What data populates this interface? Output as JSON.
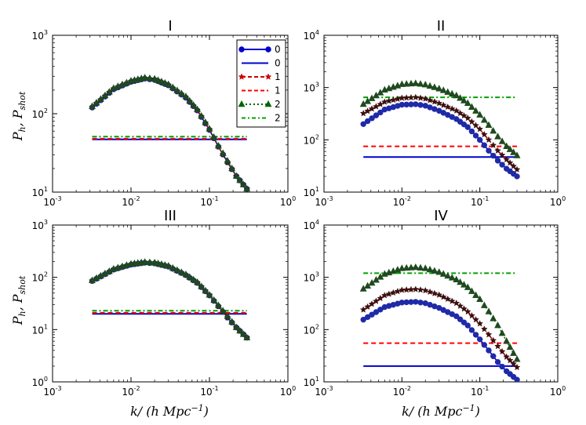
{
  "figure": {
    "xlabel_main": "k/ (h Mpc",
    "xlabel_exp": "−1",
    "xlabel_close": ")",
    "ylabel_p": "P",
    "ylabel_h": "h",
    "ylabel_comma": ",  P",
    "ylabel_shot": "shot"
  },
  "legend": [
    {
      "label": "0",
      "color": "#0000cc",
      "style": "line-marker",
      "marker": "circle"
    },
    {
      "label": "0",
      "color": "#0000cc",
      "style": "solid",
      "marker": "none"
    },
    {
      "label": "1",
      "color": "#cc0000",
      "style": "dashed-marker",
      "marker": "star"
    },
    {
      "label": "1",
      "color": "#ff0000",
      "style": "dashed",
      "marker": "none"
    },
    {
      "label": "2",
      "color": "#006400",
      "style": "dotted-marker",
      "marker": "triangle"
    },
    {
      "label": "2",
      "color": "#00a000",
      "style": "dashdot",
      "marker": "none"
    }
  ],
  "chart_data": [
    {
      "type": "line",
      "title": "I",
      "xscale": "log",
      "yscale": "log",
      "xlim": [
        0.001,
        1
      ],
      "ylim": [
        10,
        1000
      ],
      "xticks": [
        {
          "v": 0.001,
          "b": "10",
          "e": "-3"
        },
        {
          "v": 0.01,
          "b": "10",
          "e": "-2"
        },
        {
          "v": 0.1,
          "b": "10",
          "e": "-1"
        },
        {
          "v": 1,
          "b": "10",
          "e": "0"
        }
      ],
      "yticks": [
        {
          "v": 10,
          "b": "10",
          "e": "1"
        },
        {
          "v": 100,
          "b": "10",
          "e": "2"
        },
        {
          "v": 1000,
          "b": "10",
          "e": "3"
        }
      ],
      "x": [
        0.0032,
        0.006,
        0.01,
        0.015,
        0.02,
        0.03,
        0.05,
        0.07,
        0.1,
        0.13,
        0.17,
        0.22,
        0.3
      ],
      "series": [
        {
          "name": "0",
          "values": [
            120,
            205,
            255,
            280,
            270,
            230,
            160,
            110,
            62,
            38,
            24,
            16,
            11
          ]
        },
        {
          "name": "1",
          "values": [
            122,
            208,
            258,
            283,
            273,
            232,
            162,
            111,
            63,
            38,
            24,
            16,
            11
          ]
        },
        {
          "name": "2",
          "values": [
            124,
            211,
            262,
            287,
            277,
            236,
            165,
            113,
            64,
            39,
            25,
            16,
            11
          ]
        }
      ],
      "shot": [
        {
          "name": "0",
          "value": 47
        },
        {
          "name": "1",
          "value": 48
        },
        {
          "name": "2",
          "value": 51
        }
      ]
    },
    {
      "type": "line",
      "title": "II",
      "xscale": "log",
      "yscale": "log",
      "xlim": [
        0.001,
        1
      ],
      "ylim": [
        10,
        10000
      ],
      "xticks": [
        {
          "v": 0.001,
          "b": "10",
          "e": "-3"
        },
        {
          "v": 0.01,
          "b": "10",
          "e": "-2"
        },
        {
          "v": 0.1,
          "b": "10",
          "e": "-1"
        },
        {
          "v": 1,
          "b": "10",
          "e": "0"
        }
      ],
      "yticks": [
        {
          "v": 10,
          "b": "10",
          "e": "1"
        },
        {
          "v": 100,
          "b": "10",
          "e": "2"
        },
        {
          "v": 1000,
          "b": "10",
          "e": "3"
        },
        {
          "v": 10000,
          "b": "10",
          "e": "4"
        }
      ],
      "x": [
        0.0032,
        0.006,
        0.01,
        0.015,
        0.02,
        0.03,
        0.05,
        0.07,
        0.1,
        0.13,
        0.17,
        0.22,
        0.3
      ],
      "series": [
        {
          "name": "0",
          "values": [
            200,
            380,
            470,
            480,
            450,
            360,
            250,
            175,
            100,
            62,
            40,
            28,
            20
          ]
        },
        {
          "name": "1",
          "values": [
            320,
            530,
            630,
            650,
            610,
            500,
            360,
            260,
            160,
            100,
            62,
            42,
            27
          ]
        },
        {
          "name": "2",
          "values": [
            480,
            900,
            1150,
            1200,
            1130,
            950,
            700,
            500,
            300,
            190,
            115,
            75,
            50
          ]
        }
      ],
      "shot": [
        {
          "name": "0",
          "value": 47
        },
        {
          "name": "1",
          "value": 75
        },
        {
          "name": "2",
          "value": 650
        }
      ]
    },
    {
      "type": "line",
      "title": "III",
      "xscale": "log",
      "yscale": "log",
      "xlim": [
        0.001,
        1
      ],
      "ylim": [
        1,
        1000
      ],
      "xticks": [
        {
          "v": 0.001,
          "b": "10",
          "e": "-3"
        },
        {
          "v": 0.01,
          "b": "10",
          "e": "-2"
        },
        {
          "v": 0.1,
          "b": "10",
          "e": "-1"
        },
        {
          "v": 1,
          "b": "10",
          "e": "0"
        }
      ],
      "yticks": [
        {
          "v": 1,
          "b": "10",
          "e": "0"
        },
        {
          "v": 10,
          "b": "10",
          "e": "1"
        },
        {
          "v": 100,
          "b": "10",
          "e": "2"
        },
        {
          "v": 1000,
          "b": "10",
          "e": "3"
        }
      ],
      "x": [
        0.0032,
        0.006,
        0.01,
        0.015,
        0.02,
        0.03,
        0.05,
        0.07,
        0.1,
        0.13,
        0.17,
        0.22,
        0.3
      ],
      "series": [
        {
          "name": "0",
          "values": [
            85,
            140,
            175,
            190,
            185,
            160,
            110,
            78,
            45,
            28,
            17,
            11,
            7
          ]
        },
        {
          "name": "1",
          "values": [
            86,
            142,
            177,
            192,
            187,
            162,
            111,
            79,
            46,
            28,
            17,
            11,
            7
          ]
        },
        {
          "name": "2",
          "values": [
            87,
            144,
            180,
            195,
            190,
            165,
            113,
            80,
            46,
            29,
            18,
            11,
            7
          ]
        }
      ],
      "shot": [
        {
          "name": "0",
          "value": 20
        },
        {
          "name": "1",
          "value": 21
        },
        {
          "name": "2",
          "value": 23
        }
      ]
    },
    {
      "type": "line",
      "title": "IV",
      "xscale": "log",
      "yscale": "log",
      "xlim": [
        0.001,
        1
      ],
      "ylim": [
        10,
        10000
      ],
      "xticks": [
        {
          "v": 0.001,
          "b": "10",
          "e": "-3"
        },
        {
          "v": 0.01,
          "b": "10",
          "e": "-2"
        },
        {
          "v": 0.1,
          "b": "10",
          "e": "-1"
        },
        {
          "v": 1,
          "b": "10",
          "e": "0"
        }
      ],
      "yticks": [
        {
          "v": 10,
          "b": "10",
          "e": "1"
        },
        {
          "v": 100,
          "b": "10",
          "e": "2"
        },
        {
          "v": 1000,
          "b": "10",
          "e": "3"
        },
        {
          "v": 10000,
          "b": "10",
          "e": "4"
        }
      ],
      "x": [
        0.0032,
        0.006,
        0.01,
        0.015,
        0.02,
        0.03,
        0.05,
        0.07,
        0.1,
        0.13,
        0.17,
        0.22,
        0.3
      ],
      "series": [
        {
          "name": "0",
          "values": [
            155,
            270,
            330,
            340,
            320,
            260,
            180,
            120,
            65,
            40,
            24,
            16,
            11
          ]
        },
        {
          "name": "1",
          "values": [
            240,
            450,
            570,
            590,
            560,
            460,
            320,
            220,
            130,
            80,
            48,
            30,
            19
          ]
        },
        {
          "name": "2",
          "values": [
            600,
            1150,
            1480,
            1550,
            1480,
            1250,
            900,
            640,
            380,
            220,
            120,
            60,
            27
          ]
        }
      ],
      "shot": [
        {
          "name": "0",
          "value": 20
        },
        {
          "name": "1",
          "value": 55
        },
        {
          "name": "2",
          "value": 1200
        }
      ]
    }
  ]
}
